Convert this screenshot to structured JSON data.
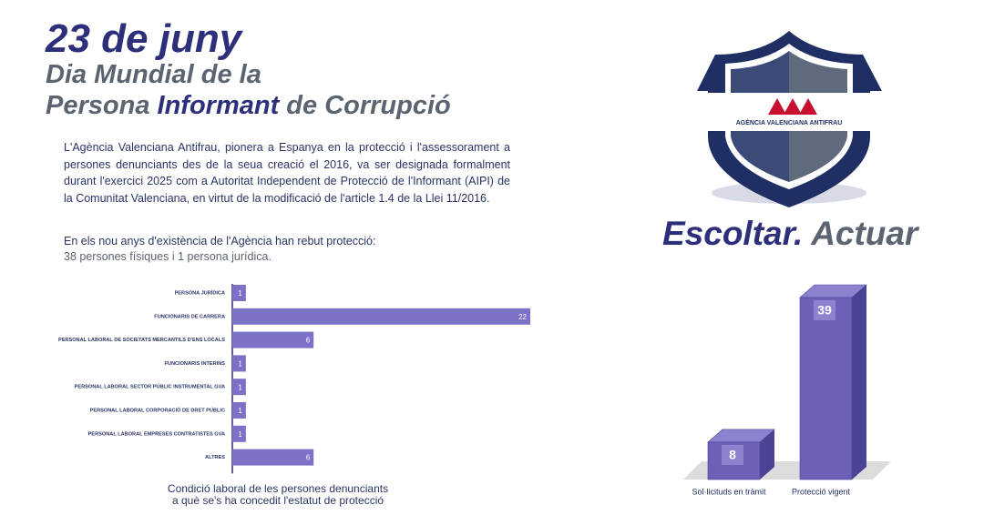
{
  "header": {
    "date": "23 de juny",
    "line2": "Dia Mundial de la",
    "line3": [
      "Persona",
      "Informant",
      "de Corrupció"
    ]
  },
  "intro": "L'Agència Valenciana Antifrau, pionera a Espanya en la protecció i l'assessorament a persones denunciants des de la seua creació el 2016, va ser designada formalment durant l'exercici 2025 com a Autoritat Independent de Protecció de l'Informant (AIPI) de la Comunitat Valenciana, en virtut de la modificació de l'article 1.4 de la Llei 11/2016.",
  "summary": [
    "En els nou anys d'existència de l'Agència han rebut protecció:",
    "38 persones físiques i 1 persona jurídica."
  ],
  "logo": {
    "text": "AGÈNCIA VALENCIANA ANTIFRAU"
  },
  "slogan": [
    "Escoltar.",
    "Actuar"
  ],
  "chart_data": [
    {
      "type": "bar",
      "orientation": "horizontal",
      "caption": [
        "Condició laboral de les persones denunciants",
        "a què se's ha concedit l'estatut de protecció"
      ],
      "categories": [
        "PERSONA JURÍDICA",
        "FUNCIONARIS DE CARRERA",
        "PERSONAL LABORAL DE SOCIETATS MERCANTILS D'ENS LOCALS",
        "FUNCIONARIS INTERINS",
        "PERSONAL LABORAL SECTOR PÚBLIC INSTRUMENTAL GVA",
        "PERSONAL LABORAL CORPORACIÓ DE DRET PÚBLIC",
        "PERSONAL LABORAL EMPRESES CONTRATISTES GVA",
        "ALTRES"
      ],
      "values": [
        1,
        22,
        6,
        1,
        1,
        1,
        1,
        6
      ],
      "color": "#7b72c8",
      "xlim": [
        0,
        22
      ]
    },
    {
      "type": "bar3d",
      "categories": [
        "Sol·licituds en tràmit",
        "Protecció vigent"
      ],
      "values": [
        8,
        39
      ],
      "color": "#6b62b8",
      "ylim": [
        0,
        39
      ]
    }
  ]
}
